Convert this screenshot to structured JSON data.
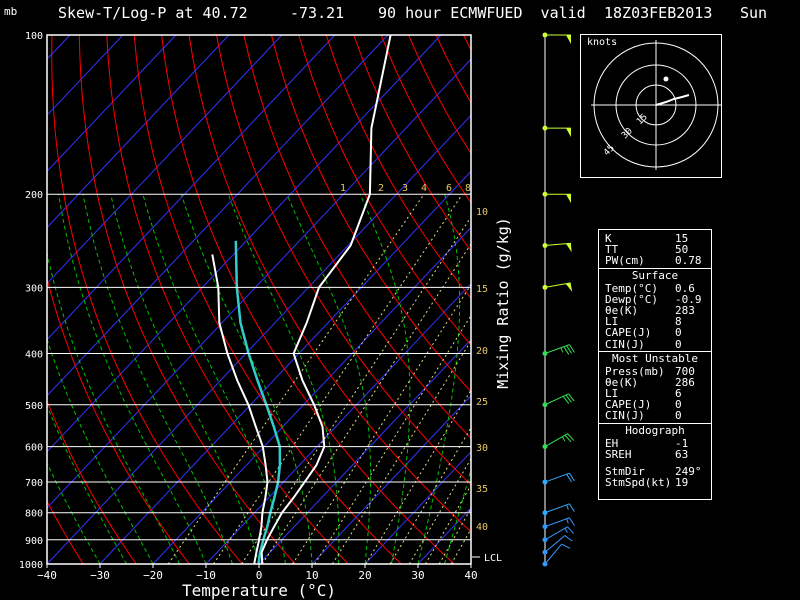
{
  "header": {
    "unit": "mb",
    "title": "Skew-T/Log-P at 40.72",
    "lon": "-73.21",
    "model": "90 hour ECMWFUED  valid",
    "valid_time": "18Z03FEB2013",
    "weekday": "Sun"
  },
  "colors": {
    "background": "#000000",
    "isotherm": "#3333ff",
    "dry_adiabat": "#ff0000",
    "moist_adiabat": "#00c000",
    "mixing_ratio": "#dddd88",
    "temperature": "#ffffff",
    "dewpoint": "#ffffff",
    "wetbulb": "#33cccc",
    "wind": "#ccff33"
  },
  "chart_data": {
    "type": "skew-t",
    "xlabel": "Temperature (°C)",
    "ylabel": "mb",
    "xlim": [
      -40,
      40
    ],
    "ylim": [
      1000,
      100
    ],
    "x_ticks": [
      "−40",
      "−30",
      "−20",
      "−10",
      "0",
      "10",
      "20",
      "30",
      "40"
    ],
    "pressure_ticks": [
      "100",
      "200",
      "300",
      "400",
      "500",
      "600",
      "700",
      "800",
      "900",
      "1000"
    ],
    "mixing_ratio_label": "Mixing Ratio (g/kg)",
    "mixing_ratio_top_ticks": [
      "1",
      "2",
      "3",
      "4",
      "6",
      "8"
    ],
    "mixing_ratio_side_ticks": [
      "10",
      "15",
      "20",
      "25",
      "30",
      "35",
      "40"
    ],
    "lcl_label": "LCL",
    "temperature_profile": [
      {
        "p": 1000,
        "t": 0.6
      },
      {
        "p": 950,
        "t": -1.6
      },
      {
        "p": 900,
        "t": -2.8
      },
      {
        "p": 850,
        "t": -3.8
      },
      {
        "p": 800,
        "t": -4.8
      },
      {
        "p": 750,
        "t": -5.3
      },
      {
        "p": 700,
        "t": -6
      },
      {
        "p": 650,
        "t": -6.8
      },
      {
        "p": 600,
        "t": -8.6
      },
      {
        "p": 550,
        "t": -12.5
      },
      {
        "p": 500,
        "t": -18
      },
      {
        "p": 450,
        "t": -24.5
      },
      {
        "p": 400,
        "t": -31
      },
      {
        "p": 350,
        "t": -34
      },
      {
        "p": 300,
        "t": -38
      },
      {
        "p": 250,
        "t": -39.5
      },
      {
        "p": 200,
        "t": -45
      },
      {
        "p": 150,
        "t": -56.5
      },
      {
        "p": 100,
        "t": -69.5
      }
    ],
    "dewpoint_profile": [
      {
        "p": 1000,
        "t": -0.9
      },
      {
        "p": 950,
        "t": -2.6
      },
      {
        "p": 900,
        "t": -4.3
      },
      {
        "p": 850,
        "t": -6.2
      },
      {
        "p": 800,
        "t": -8.5
      },
      {
        "p": 750,
        "t": -10.6
      },
      {
        "p": 700,
        "t": -13
      },
      {
        "p": 650,
        "t": -16.4
      },
      {
        "p": 600,
        "t": -20.2
      },
      {
        "p": 550,
        "t": -25.1
      },
      {
        "p": 500,
        "t": -30.4
      },
      {
        "p": 450,
        "t": -36.8
      },
      {
        "p": 400,
        "t": -43.5
      },
      {
        "p": 350,
        "t": -50.5
      },
      {
        "p": 300,
        "t": -57
      },
      {
        "p": 260,
        "t": -64
      }
    ],
    "wetbulb_profile": [
      {
        "p": 1000,
        "t": -0.1
      },
      {
        "p": 950,
        "t": -1.9
      },
      {
        "p": 900,
        "t": -3.5
      },
      {
        "p": 850,
        "t": -5.1
      },
      {
        "p": 800,
        "t": -7
      },
      {
        "p": 750,
        "t": -8.9
      },
      {
        "p": 700,
        "t": -11
      },
      {
        "p": 650,
        "t": -13.7
      },
      {
        "p": 600,
        "t": -17
      },
      {
        "p": 550,
        "t": -21.7
      },
      {
        "p": 500,
        "t": -27
      },
      {
        "p": 450,
        "t": -33
      },
      {
        "p": 400,
        "t": -39.5
      },
      {
        "p": 350,
        "t": -46.5
      },
      {
        "p": 300,
        "t": -53.5
      },
      {
        "p": 245,
        "t": -62
      }
    ],
    "wind_barbs": [
      {
        "p": 100,
        "dir": 270,
        "speed_kt": 50
      },
      {
        "p": 150,
        "dir": 270,
        "speed_kt": 50
      },
      {
        "p": 200,
        "dir": 270,
        "speed_kt": 50
      },
      {
        "p": 250,
        "dir": 265,
        "speed_kt": 50
      },
      {
        "p": 300,
        "dir": 260,
        "speed_kt": 50
      },
      {
        "p": 400,
        "dir": 250,
        "speed_kt": 35
      },
      {
        "p": 500,
        "dir": 245,
        "speed_kt": 30
      },
      {
        "p": 600,
        "dir": 240,
        "speed_kt": 25
      },
      {
        "p": 700,
        "dir": 250,
        "speed_kt": 20
      },
      {
        "p": 800,
        "dir": 250,
        "speed_kt": 15
      },
      {
        "p": 850,
        "dir": 250,
        "speed_kt": 15
      },
      {
        "p": 900,
        "dir": 240,
        "speed_kt": 15
      },
      {
        "p": 950,
        "dir": 230,
        "speed_kt": 10
      },
      {
        "p": 1000,
        "dir": 220,
        "speed_kt": 10
      }
    ]
  },
  "hodograph": {
    "unit_label": "knots",
    "ring_labels": [
      "15",
      "30",
      "45"
    ]
  },
  "indices": {
    "top": [
      {
        "label": "K",
        "value": "15"
      },
      {
        "label": "TT",
        "value": "50"
      },
      {
        "label": "PW(cm)",
        "value": "0.78"
      }
    ],
    "surface_title": "Surface",
    "surface": [
      {
        "label": "Temp(°C)",
        "value": "0.6"
      },
      {
        "label": "Dewp(°C)",
        "value": "-0.9"
      },
      {
        "label": "θe(K)",
        "value": "283"
      },
      {
        "label": "LI",
        "value": "8"
      },
      {
        "label": "CAPE(J)",
        "value": "0"
      },
      {
        "label": "CIN(J)",
        "value": "0"
      }
    ],
    "mu_title": "Most Unstable",
    "most_unstable": [
      {
        "label": "Press(mb)",
        "value": "700"
      },
      {
        "label": "θe(K)",
        "value": "286"
      },
      {
        "label": "LI",
        "value": "6"
      },
      {
        "label": "CAPE(J)",
        "value": "0"
      },
      {
        "label": "CIN(J)",
        "value": "0"
      }
    ],
    "hodo_title": "Hodograph",
    "hodo": [
      {
        "label": "EH",
        "value": "-1"
      },
      {
        "label": "SREH",
        "value": "63"
      }
    ],
    "storm": [
      {
        "label": "StmDir",
        "value": "249°"
      },
      {
        "label": "StmSpd(kt)",
        "value": "19"
      }
    ]
  }
}
